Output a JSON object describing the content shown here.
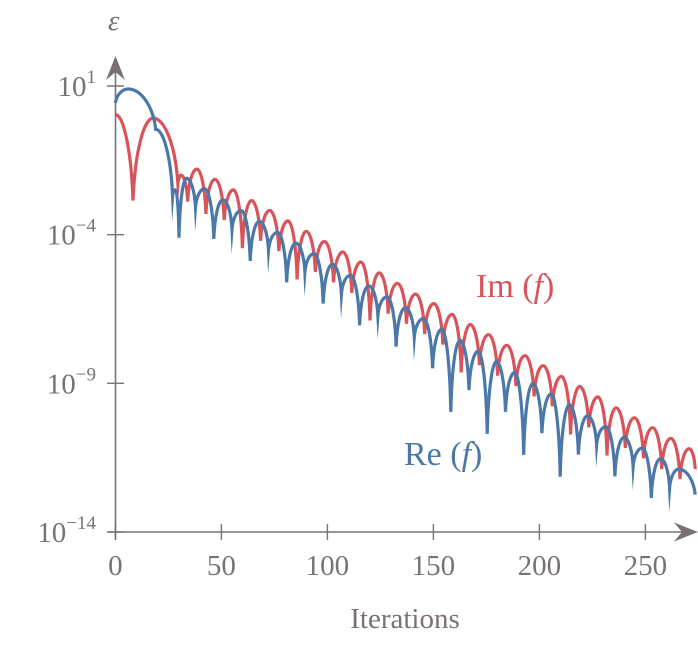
{
  "chart_data": {
    "type": "line",
    "title": "",
    "xlabel": "Iterations",
    "ylabel": "ε",
    "xlim": [
      0,
      275
    ],
    "ylim": [
      1e-14,
      10
    ],
    "y_scale": "log",
    "grid": false,
    "legend": "none (inline labels)",
    "x_ticks": [
      "0",
      "50",
      "100",
      "150",
      "200",
      "250"
    ],
    "x_tick_values": [
      0,
      50,
      100,
      150,
      200,
      250
    ],
    "y_ticks": [
      {
        "value": 10,
        "base": "10",
        "exp": "1"
      },
      {
        "value": 0.0001,
        "base": "10",
        "exp": "−4"
      },
      {
        "value": 1e-09,
        "base": "10",
        "exp": "−9"
      },
      {
        "value": 1e-14,
        "base": "10",
        "exp": "−14"
      }
    ],
    "series": [
      {
        "name": "Im (f)",
        "color": "#d9545a",
        "label_prefix": "Im",
        "label_arg": "f",
        "points": [
          [
            0,
            1.1
          ],
          [
            8.3,
            0.0014
          ],
          [
            17.8,
            0.83
          ],
          [
            29.5,
            0.005
          ],
          [
            31,
            0.01
          ],
          [
            34.1,
            0.0013
          ],
          [
            38.4,
            0.016
          ],
          [
            42.7,
            0.0005
          ],
          [
            47.0,
            0.0072
          ],
          [
            51.3,
            0.00031
          ],
          [
            55.6,
            0.0032
          ],
          [
            59.9,
            3.5e-05
          ],
          [
            64.2,
            0.0014
          ],
          [
            68.5,
            6.2e-05
          ],
          [
            72.8,
            0.00065
          ],
          [
            77.1,
            2.8e-05
          ],
          [
            81.4,
            0.00029
          ],
          [
            85.7,
            3.1e-06
          ],
          [
            90.0,
            0.00013
          ],
          [
            94.3,
            5.5e-06
          ],
          [
            98.6,
            5.9e-05
          ],
          [
            102.9,
            2.5e-06
          ],
          [
            107.2,
            2.6e-05
          ],
          [
            111.5,
            1.1e-06
          ],
          [
            115.8,
            1.2e-05
          ],
          [
            120.1,
            1.3e-07
          ],
          [
            124.4,
            5.2e-06
          ],
          [
            128.7,
            2.2e-07
          ],
          [
            133.0,
            2.3e-06
          ],
          [
            137.3,
            1e-07
          ],
          [
            141.6,
            1e-06
          ],
          [
            145.9,
            4.5e-08
          ],
          [
            150.2,
            4.8e-07
          ],
          [
            154.5,
            2e-08
          ],
          [
            158.8,
            2.1e-07
          ],
          [
            163.1,
            2.3e-09
          ],
          [
            167.4,
            9.5e-08
          ],
          [
            171.7,
            4.1e-09
          ],
          [
            176.0,
            4.3e-08
          ],
          [
            180.3,
            1.8e-09
          ],
          [
            184.6,
            1.9e-08
          ],
          [
            188.9,
            8.1e-10
          ],
          [
            193.2,
            8.5e-09
          ],
          [
            197.5,
            3.6e-10
          ],
          [
            201.8,
            3.9e-09
          ],
          [
            206.1,
            1.7e-10
          ],
          [
            210.4,
            1.7e-09
          ],
          [
            214.7,
            1.9e-11
          ],
          [
            219.0,
            7.8e-10
          ],
          [
            223.3,
            3.3e-11
          ],
          [
            227.6,
            3.5e-10
          ],
          [
            231.9,
            3.7e-12
          ],
          [
            236.2,
            1.5e-10
          ],
          [
            240.5,
            6.6e-12
          ],
          [
            244.8,
            6.9e-11
          ],
          [
            249.1,
            3e-12
          ],
          [
            253.4,
            3.2e-11
          ],
          [
            257.7,
            1.3e-12
          ],
          [
            262.0,
            1.4e-11
          ],
          [
            266.3,
            6e-13
          ],
          [
            270.6,
            6.3e-12
          ],
          [
            273.5,
            1.3e-12
          ]
        ]
      },
      {
        "name": "Re (f)",
        "color": "#4a78a8",
        "label_prefix": "Re",
        "label_arg": "f",
        "points": [
          [
            0,
            2.7
          ],
          [
            6,
            7.9
          ],
          [
            19,
            0.35
          ],
          [
            27,
            0.002
          ],
          [
            28.3,
            0.0032
          ],
          [
            30,
            7.9e-05
          ],
          [
            33.5,
            0.0079
          ],
          [
            37.8,
            0.00083
          ],
          [
            42.1,
            0.0035
          ],
          [
            46.4,
            7.2e-05
          ],
          [
            50.7,
            0.0015
          ],
          [
            55.0,
            0.00015
          ],
          [
            59.3,
            0.00065
          ],
          [
            63.6,
            1.3e-05
          ],
          [
            67.9,
            0.00028
          ],
          [
            72.2,
            3e-05
          ],
          [
            76.5,
            0.00012
          ],
          [
            80.8,
            2.5e-06
          ],
          [
            85.1,
            5.2e-05
          ],
          [
            89.4,
            5.5e-06
          ],
          [
            93.7,
            2.3e-05
          ],
          [
            98.0,
            4.8e-07
          ],
          [
            102.3,
            1e-05
          ],
          [
            106.6,
            1e-06
          ],
          [
            110.9,
            4.3e-06
          ],
          [
            115.2,
            8.9e-08
          ],
          [
            119.5,
            1.9e-06
          ],
          [
            123.8,
            1.9e-07
          ],
          [
            128.1,
            8.1e-07
          ],
          [
            132.4,
            1.7e-08
          ],
          [
            136.7,
            3.5e-07
          ],
          [
            141.0,
            3.6e-08
          ],
          [
            145.3,
            1.5e-07
          ],
          [
            149.6,
            3.2e-09
          ],
          [
            153.9,
            6.6e-08
          ],
          [
            158.2,
            1.1e-10
          ],
          [
            162.5,
            2.8e-08
          ],
          [
            166.8,
            5.9e-10
          ],
          [
            171.1,
            1.2e-08
          ],
          [
            175.4,
            2e-11
          ],
          [
            179.7,
            5.4e-09
          ],
          [
            184.0,
            1.1e-10
          ],
          [
            188.3,
            2.3e-09
          ],
          [
            192.6,
            3.9e-12
          ],
          [
            196.9,
            1e-09
          ],
          [
            201.2,
            2.1e-11
          ],
          [
            205.5,
            4.4e-10
          ],
          [
            209.8,
            7.2e-13
          ],
          [
            214.1,
            1.9e-10
          ],
          [
            218.4,
            4e-12
          ],
          [
            222.7,
            8.1e-11
          ],
          [
            227.0,
            8.5e-12
          ],
          [
            231.3,
            3.5e-11
          ],
          [
            235.6,
            7.4e-13
          ],
          [
            239.9,
            1.5e-11
          ],
          [
            244.2,
            1.6e-12
          ],
          [
            248.5,
            6.6e-12
          ],
          [
            252.8,
            1.4e-13
          ],
          [
            257.1,
            2.9e-12
          ],
          [
            261.4,
            3e-13
          ],
          [
            265.7,
            1.3e-12
          ],
          [
            273.5,
            1.8e-13
          ]
        ]
      }
    ]
  },
  "colors": {
    "axis": "#787272",
    "im": "#d9545a",
    "re": "#4a78a8"
  }
}
